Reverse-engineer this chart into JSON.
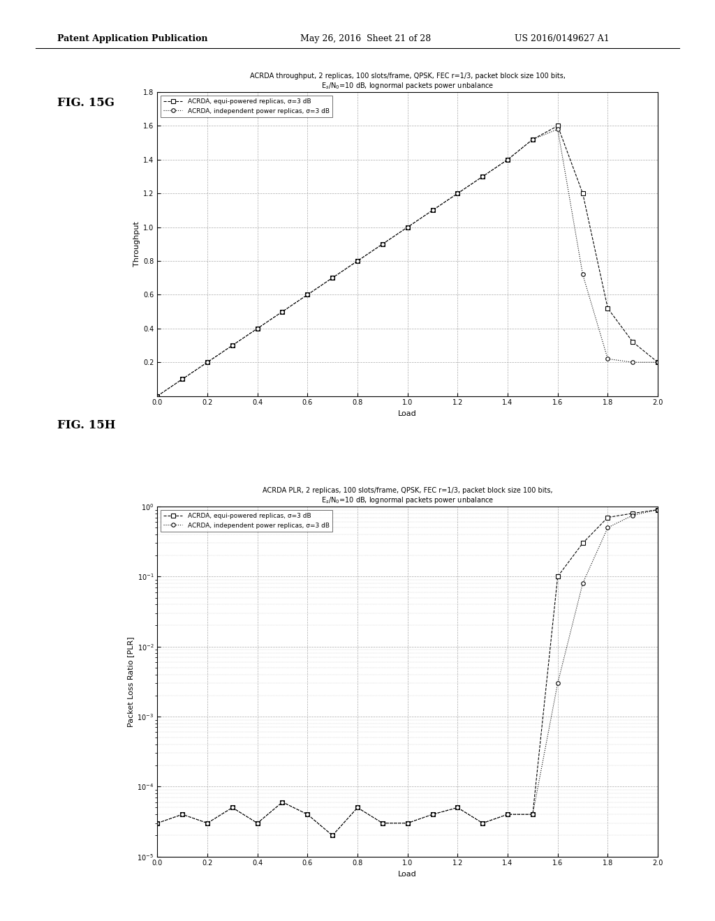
{
  "fig15g": {
    "title_line1": "ACRDA throughput, 2 replicas, 100 slots/frame, QPSK, FEC r=1/3, packet block size 100 bits,",
    "title_line2": "E$_s$/N$_0$=10 dB, lognormal packets power unbalance",
    "xlabel": "Load",
    "ylabel": "Throughput",
    "xlim": [
      0,
      2
    ],
    "ylim": [
      0,
      1.8
    ],
    "yticks": [
      0.2,
      0.4,
      0.6,
      0.8,
      1.0,
      1.2,
      1.4,
      1.6,
      1.8
    ],
    "xticks": [
      0,
      0.2,
      0.4,
      0.6,
      0.8,
      1.0,
      1.2,
      1.4,
      1.6,
      1.8,
      2.0
    ],
    "series1_label": "ACRDA, equi-powered replicas, σ=3 dB",
    "series2_label": "ACRDA, independent power replicas, σ=3 dB",
    "series1_x": [
      0.0,
      0.1,
      0.2,
      0.3,
      0.4,
      0.5,
      0.6,
      0.7,
      0.8,
      0.9,
      1.0,
      1.1,
      1.2,
      1.3,
      1.4,
      1.5,
      1.6,
      1.7,
      1.8,
      1.9,
      2.0
    ],
    "series1_y": [
      0.0,
      0.1,
      0.2,
      0.3,
      0.4,
      0.5,
      0.6,
      0.7,
      0.8,
      0.9,
      1.0,
      1.1,
      1.2,
      1.3,
      1.4,
      1.52,
      1.6,
      1.2,
      0.52,
      0.32,
      0.2
    ],
    "series2_x": [
      0.0,
      0.1,
      0.2,
      0.3,
      0.4,
      0.5,
      0.6,
      0.7,
      0.8,
      0.9,
      1.0,
      1.1,
      1.2,
      1.3,
      1.4,
      1.5,
      1.6,
      1.7,
      1.8,
      1.9,
      2.0
    ],
    "series2_y": [
      0.0,
      0.1,
      0.2,
      0.3,
      0.4,
      0.5,
      0.6,
      0.7,
      0.8,
      0.9,
      1.0,
      1.1,
      1.2,
      1.3,
      1.4,
      1.52,
      1.58,
      0.72,
      0.22,
      0.2,
      0.2
    ]
  },
  "fig15h": {
    "title_line1": "ACRDA PLR, 2 replicas, 100 slots/frame, QPSK, FEC r=1/3, packet block size 100 bits,",
    "title_line2": "E$_s$/N$_0$=10 dB, lognormal packets power unbalance",
    "xlabel": "Load",
    "ylabel": "Packet Loss Ratio [PLR]",
    "xlim": [
      0,
      2
    ],
    "xticks": [
      0,
      0.2,
      0.4,
      0.6,
      0.8,
      1.0,
      1.2,
      1.4,
      1.6,
      1.8,
      2.0
    ],
    "series1_label": "ACRDA, equi-powered replicas, σ=3 dB",
    "series2_label": "ACRDA, independent power replicas, σ=3 dB",
    "series1_x": [
      0.0,
      0.1,
      0.2,
      0.3,
      0.4,
      0.5,
      0.6,
      0.7,
      0.8,
      0.9,
      1.0,
      1.1,
      1.2,
      1.3,
      1.4,
      1.5,
      1.6,
      1.7,
      1.8,
      1.9,
      2.0
    ],
    "series1_y": [
      3e-05,
      4e-05,
      3e-05,
      5e-05,
      3e-05,
      6e-05,
      4e-05,
      2e-05,
      5e-05,
      3e-05,
      3e-05,
      4e-05,
      5e-05,
      3e-05,
      4e-05,
      4e-05,
      0.1,
      0.3,
      0.7,
      0.8,
      0.9
    ],
    "series2_x": [
      0.0,
      0.1,
      0.2,
      0.3,
      0.4,
      0.5,
      0.6,
      0.7,
      0.8,
      0.9,
      1.0,
      1.1,
      1.2,
      1.3,
      1.4,
      1.5,
      1.6,
      1.7,
      1.8,
      1.9,
      2.0
    ],
    "series2_y": [
      3e-05,
      4e-05,
      3e-05,
      5e-05,
      3e-05,
      6e-05,
      4e-05,
      2e-05,
      5e-05,
      3e-05,
      3e-05,
      4e-05,
      5e-05,
      3e-05,
      4e-05,
      4e-05,
      0.003,
      0.08,
      0.5,
      0.75,
      0.9
    ]
  },
  "fig_label_g": "FIG. 15G",
  "fig_label_h": "FIG. 15H",
  "header_left": "Patent Application Publication",
  "header_mid": "May 26, 2016  Sheet 21 of 28",
  "header_right": "US 2016/0149627 A1"
}
